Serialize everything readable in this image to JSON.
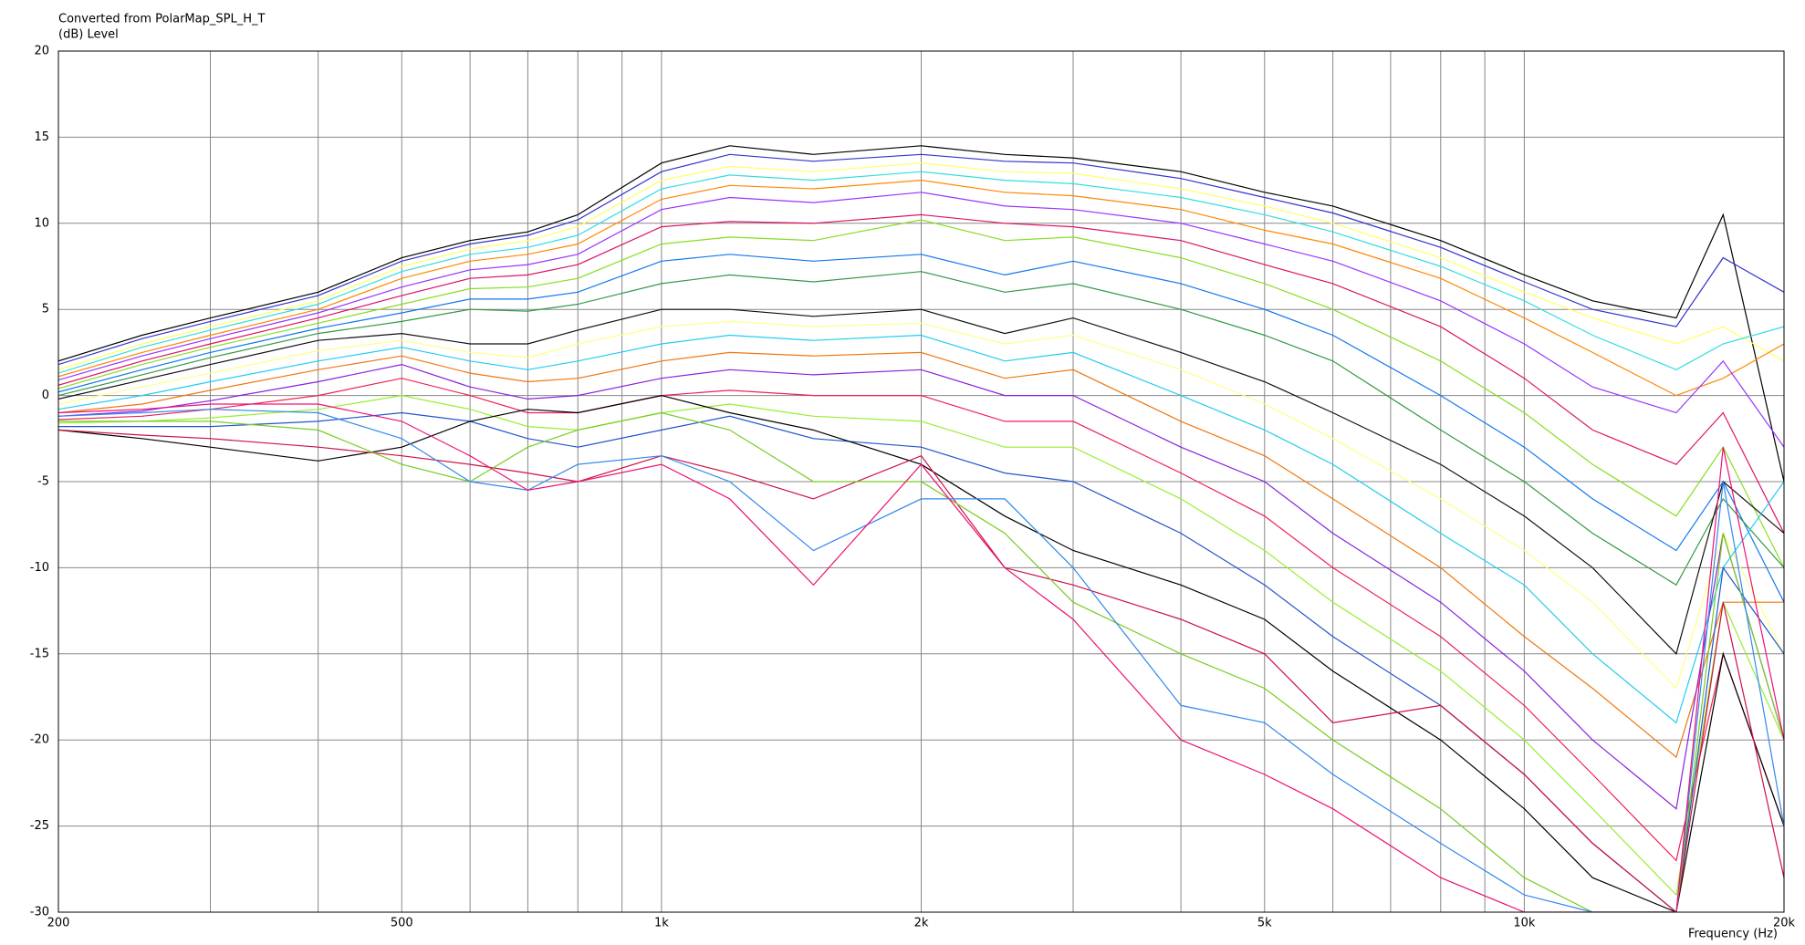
{
  "chart_data": {
    "type": "line",
    "title": "Converted from PolarMap_SPL_H_T",
    "y_label": "(dB)  Level",
    "x_label": "Frequency  (Hz)",
    "log_x": true,
    "grid": true,
    "xlim": [
      200,
      20000
    ],
    "ylim": [
      -30,
      20
    ],
    "xticks": [
      200,
      500,
      {
        "value": 1000,
        "label": "1k"
      },
      {
        "value": 2000,
        "label": "2k"
      },
      {
        "value": 5000,
        "label": "5k"
      },
      {
        "value": 10000,
        "label": "10k"
      },
      {
        "value": 20000,
        "label": "20k"
      }
    ],
    "xminorticks": [
      300,
      400,
      600,
      700,
      800,
      900,
      3000,
      4000,
      6000,
      7000,
      8000,
      9000
    ],
    "yticks": [
      20,
      15,
      10,
      5,
      0,
      -5,
      -10,
      -15,
      -20,
      -25,
      -30
    ],
    "x": [
      200,
      250,
      300,
      400,
      500,
      600,
      700,
      800,
      1000,
      1200,
      1500,
      2000,
      2500,
      3000,
      4000,
      5000,
      6000,
      8000,
      10000,
      12000,
      15000,
      17000,
      20000
    ],
    "series": [
      {
        "color": "#000000",
        "values": [
          2,
          3.5,
          4.5,
          6,
          8,
          9,
          9.5,
          10.5,
          13.5,
          14.5,
          14,
          14.5,
          14,
          13.8,
          13,
          11.8,
          11,
          9,
          7,
          5.5,
          4.5,
          10.5,
          -5
        ]
      },
      {
        "color": "#3333cc",
        "values": [
          1.8,
          3.3,
          4.3,
          5.8,
          7.8,
          8.8,
          9.3,
          10.2,
          13,
          14,
          13.6,
          14,
          13.6,
          13.5,
          12.6,
          11.5,
          10.6,
          8.6,
          6.6,
          5,
          4,
          8,
          6
        ]
      },
      {
        "color": "#ffff66",
        "values": [
          1.5,
          3,
          4,
          5.5,
          7.5,
          8.5,
          9,
          9.8,
          12.5,
          13.3,
          13,
          13.5,
          13,
          12.9,
          12,
          11,
          10,
          8,
          6,
          4.5,
          3,
          4,
          2
        ]
      },
      {
        "color": "#33dddd",
        "values": [
          1.3,
          2.8,
          3.8,
          5.3,
          7.2,
          8.2,
          8.6,
          9.3,
          12,
          12.8,
          12.5,
          13,
          12.5,
          12.3,
          11.5,
          10.5,
          9.5,
          7.5,
          5.5,
          3.5,
          1.5,
          3,
          4
        ]
      },
      {
        "color": "#ff8800",
        "values": [
          1.1,
          2.5,
          3.5,
          5,
          6.8,
          7.8,
          8.2,
          8.8,
          11.4,
          12.2,
          12,
          12.5,
          11.8,
          11.6,
          10.8,
          9.6,
          8.8,
          6.8,
          4.5,
          2.5,
          0,
          1,
          3
        ]
      },
      {
        "color": "#9933ff",
        "values": [
          0.9,
          2.3,
          3.3,
          4.8,
          6.3,
          7.3,
          7.6,
          8.2,
          10.8,
          11.5,
          11.2,
          11.8,
          11,
          10.8,
          10,
          8.8,
          7.8,
          5.5,
          3,
          0.5,
          -1,
          2,
          -3
        ]
      },
      {
        "color": "#dd1166",
        "values": [
          0.6,
          2,
          3,
          4.5,
          5.8,
          6.8,
          7,
          7.6,
          9.8,
          10.1,
          10,
          10.5,
          10,
          9.8,
          9,
          7.6,
          6.5,
          4,
          1,
          -2,
          -4,
          -1,
          -8
        ]
      },
      {
        "color": "#88dd22",
        "values": [
          0.4,
          1.8,
          2.8,
          4.2,
          5.3,
          6.2,
          6.3,
          6.8,
          8.8,
          9.2,
          9,
          10.2,
          9,
          9.2,
          8,
          6.5,
          5,
          2,
          -1,
          -4,
          -7,
          -3,
          -10
        ]
      },
      {
        "color": "#1177ee",
        "values": [
          0.2,
          1.5,
          2.5,
          3.9,
          4.8,
          5.6,
          5.6,
          6,
          7.8,
          8.2,
          7.8,
          8.2,
          7,
          7.8,
          6.5,
          5,
          3.5,
          0,
          -3,
          -6,
          -9,
          -5,
          -12
        ]
      },
      {
        "color": "#339944",
        "values": [
          0,
          1.2,
          2.2,
          3.6,
          4.3,
          5,
          4.9,
          5.3,
          6.5,
          7,
          6.6,
          7.2,
          6,
          6.5,
          5,
          3.5,
          2,
          -2,
          -5,
          -8,
          -11,
          -6,
          -10
        ]
      },
      {
        "color": "#111111",
        "values": [
          -0.2,
          0.9,
          1.8,
          3.2,
          3.6,
          3,
          3,
          3.8,
          5,
          5,
          4.6,
          5,
          3.6,
          4.5,
          2.5,
          0.8,
          -1,
          -4,
          -7,
          -10,
          -15,
          -5,
          -8
        ]
      },
      {
        "color": "#ffff88",
        "values": [
          -0.5,
          0.5,
          1.3,
          2.6,
          3.2,
          2.5,
          2.2,
          3,
          4,
          4.3,
          4,
          4.2,
          3,
          3.5,
          1.5,
          -0.5,
          -2.5,
          -6,
          -9,
          -12,
          -17,
          -8,
          -15
        ]
      },
      {
        "color": "#22ccee",
        "values": [
          -0.8,
          0,
          0.8,
          2,
          2.8,
          2,
          1.5,
          2,
          3,
          3.5,
          3.2,
          3.5,
          2,
          2.5,
          0,
          -2,
          -4,
          -8,
          -11,
          -15,
          -19,
          -10,
          -5
        ]
      },
      {
        "color": "#ee7711",
        "values": [
          -1,
          -0.5,
          0.3,
          1.5,
          2.3,
          1.3,
          0.8,
          1,
          2,
          2.5,
          2.3,
          2.5,
          1,
          1.5,
          -1.5,
          -3.5,
          -6,
          -10,
          -14,
          -17,
          -21,
          -12,
          -12
        ]
      },
      {
        "color": "#8822dd",
        "values": [
          -1.2,
          -0.9,
          -0.3,
          0.8,
          1.8,
          0.5,
          -0.2,
          0,
          1,
          1.5,
          1.2,
          1.5,
          0,
          0,
          -3,
          -5,
          -8,
          -12,
          -16,
          -20,
          -24,
          -8,
          -20
        ]
      },
      {
        "color": "#ee2255",
        "values": [
          -1.4,
          -1.2,
          -0.8,
          0,
          1,
          0,
          -1,
          -1,
          0,
          0.3,
          0,
          0,
          -1.5,
          -1.5,
          -4.5,
          -7,
          -10,
          -14,
          -18,
          -22,
          -27,
          -15,
          -25
        ]
      },
      {
        "color": "#99ee33",
        "values": [
          -1.6,
          -1.5,
          -1.3,
          -0.8,
          0,
          -0.8,
          -1.8,
          -2,
          -1,
          -0.5,
          -1.2,
          -1.5,
          -3,
          -3,
          -6,
          -9,
          -12,
          -16,
          -20,
          -24,
          -29,
          -12,
          -20
        ]
      },
      {
        "color": "#2255cc",
        "values": [
          -1.8,
          -1.8,
          -1.8,
          -1.5,
          -1,
          -1.5,
          -2.5,
          -3,
          -2,
          -1.2,
          -2.5,
          -3,
          -4.5,
          -5,
          -8,
          -11,
          -14,
          -18,
          -22,
          -26,
          -30,
          -10,
          -15
        ]
      },
      {
        "color": "#000000",
        "values": [
          -2,
          -2.5,
          -3,
          -3.8,
          -3,
          -1.5,
          -0.8,
          -1,
          0,
          -1,
          -2,
          -4,
          -7,
          -9,
          -11,
          -13,
          -16,
          -20,
          -24,
          -28,
          -30,
          -15,
          -25
        ]
      },
      {
        "color": "#cc1144",
        "values": [
          -2,
          -2.3,
          -2.5,
          -3,
          -3.5,
          -4,
          -4.5,
          -5,
          -3.5,
          -4.5,
          -6,
          -3.5,
          -10,
          -11,
          -13,
          -15,
          -19,
          -18,
          -22,
          -26,
          -30,
          -12,
          -28
        ]
      },
      {
        "color": "#77cc22",
        "values": [
          -1.5,
          -1.5,
          -1.5,
          -2,
          -4,
          -5,
          -3,
          -2,
          -1,
          -2,
          -5,
          -5,
          -8,
          -12,
          -15,
          -17,
          -20,
          -24,
          -28,
          -30,
          -30,
          -8,
          -20
        ]
      },
      {
        "color": "#3388ee",
        "values": [
          -1.2,
          -1,
          -0.8,
          -1,
          -2.5,
          -5,
          -5.5,
          -4,
          -3.5,
          -5,
          -9,
          -6,
          -6,
          -10,
          -18,
          -19,
          -22,
          -26,
          -29,
          -30,
          -30,
          -5,
          -25
        ]
      },
      {
        "color": "#ee1177",
        "values": [
          -1,
          -0.8,
          -0.5,
          -0.5,
          -1.5,
          -3.5,
          -5.5,
          -5,
          -4,
          -6,
          -11,
          -4,
          -10,
          -13,
          -20,
          -22,
          -24,
          -28,
          -30,
          -30,
          -30,
          -3,
          -20
        ]
      }
    ]
  }
}
